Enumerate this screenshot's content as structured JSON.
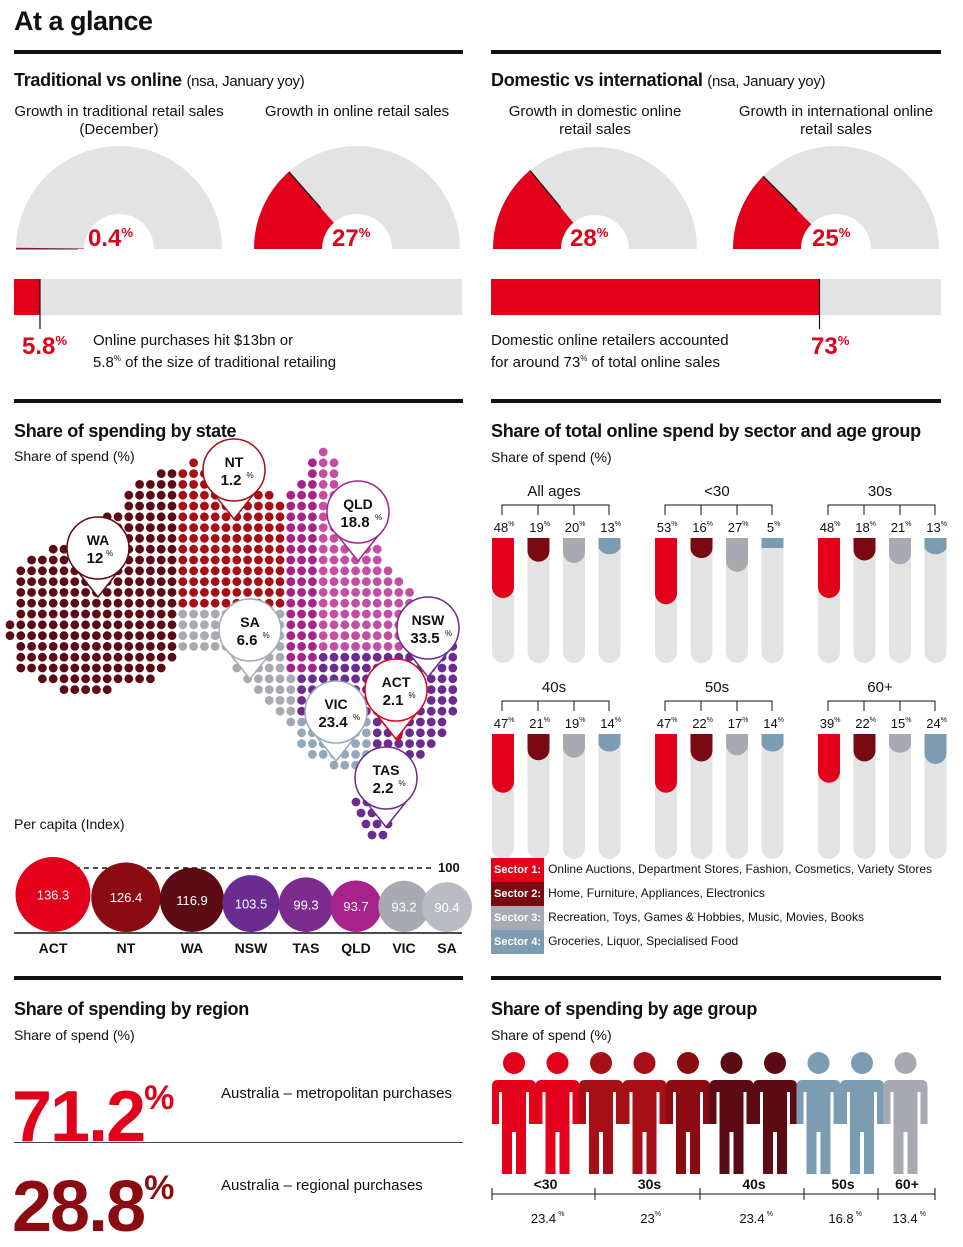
{
  "title": "At a glance",
  "colors": {
    "red": "#e3001b",
    "dark_red": "#a50f15",
    "maroon": "#5c0b14",
    "purple": "#6a2c91",
    "magenta": "#a8228b",
    "pink": "#c44fa2",
    "grey": "#a7aab0",
    "steel": "#7c9db1",
    "light": "#e3e3e3"
  },
  "trad_online": {
    "heading": "Traditional vs online",
    "note": "(nsa, January yoy)",
    "gauge1": {
      "caption": "Growth in traditional retail sales (December)",
      "value": "0.4",
      "pct": 0.4
    },
    "gauge2": {
      "caption": "Growth in online retail sales",
      "value": "27",
      "pct": 27
    },
    "bar_value": "5.8",
    "bar_pct": 5.8,
    "bar_text_1": "Online purchases hit $13bn or",
    "bar_text_2a": "5.8",
    "bar_text_2b": " of the size of traditional retailing"
  },
  "dom_intl": {
    "heading": "Domestic vs international",
    "note": "(nsa, January yoy)",
    "gauge1": {
      "caption": "Growth in domestic online retail sales",
      "value": "28",
      "pct": 28
    },
    "gauge2": {
      "caption": "Growth in international online retail sales",
      "value": "25",
      "pct": 25
    },
    "bar_value": "73",
    "bar_pct": 73,
    "bar_text_1": "Domestic online retailers accounted",
    "bar_text_2a": "for around 73",
    "bar_text_2b": " of total online sales"
  },
  "state": {
    "heading": "Share of spending by state",
    "sub": "Share of spend (%)",
    "pins": [
      {
        "state": "NT",
        "value": "1.2"
      },
      {
        "state": "QLD",
        "value": "18.8"
      },
      {
        "state": "WA",
        "value": "12"
      },
      {
        "state": "SA",
        "value": "6.6"
      },
      {
        "state": "NSW",
        "value": "33.5"
      },
      {
        "state": "ACT",
        "value": "2.1"
      },
      {
        "state": "VIC",
        "value": "23.4"
      },
      {
        "state": "TAS",
        "value": "2.2"
      }
    ],
    "per_capita_label": "Per capita (Index)",
    "index_line_label": "100"
  },
  "chart_data": [
    {
      "type": "bar",
      "title": "Per capita (Index)",
      "categories": [
        "ACT",
        "NT",
        "WA",
        "NSW",
        "TAS",
        "QLD",
        "VIC",
        "SA"
      ],
      "values": [
        136.3,
        126.4,
        116.9,
        103.5,
        99.3,
        93.7,
        93.2,
        90.4
      ],
      "labels": [
        "136.3",
        "126.4",
        "116.9",
        "103.5",
        "99.3",
        "93.7",
        "93.2",
        "90.4"
      ],
      "reference_line": 100
    },
    {
      "type": "bar",
      "title": "Share of total online spend by sector and age group",
      "groups": [
        {
          "name": "All ages",
          "values": [
            48,
            19,
            20,
            13
          ]
        },
        {
          "name": "<30",
          "values": [
            53,
            16,
            27,
            5
          ]
        },
        {
          "name": "30s",
          "values": [
            48,
            18,
            21,
            13
          ]
        },
        {
          "name": "40s",
          "values": [
            47,
            21,
            19,
            14
          ]
        },
        {
          "name": "50s",
          "values": [
            47,
            22,
            17,
            14
          ]
        },
        {
          "name": "60+",
          "values": [
            39,
            22,
            15,
            24
          ]
        }
      ],
      "series": [
        "Sector 1",
        "Sector 2",
        "Sector 3",
        "Sector 4"
      ],
      "ylim": [
        0,
        100
      ]
    },
    {
      "type": "bar",
      "title": "Share of spending by age group",
      "categories": [
        "<30",
        "30s",
        "40s",
        "50s",
        "60+"
      ],
      "values": [
        23.4,
        23,
        23.4,
        16.8,
        13.4
      ]
    }
  ],
  "sector": {
    "heading": "Share of total online spend by sector and age group",
    "sub": "Share of spend (%)",
    "legend": [
      {
        "chip": "Sector 1:",
        "text": "Online Auctions, Department Stores, Fashion, Cosmetics, Variety Stores"
      },
      {
        "chip": "Sector 2:",
        "text": "Home, Furniture, Appliances, Electronics"
      },
      {
        "chip": "Sector 3:",
        "text": "Recreation, Toys, Games & Hobbies, Music, Movies, Books"
      },
      {
        "chip": "Sector 4:",
        "text": "Groceries, Liquor, Specialised Food"
      }
    ]
  },
  "region": {
    "heading": "Share of spending by region",
    "sub": "Share of spend (%)",
    "metro_value": "71.2",
    "metro_label": "Australia – metropolitan purchases",
    "regional_value": "28.8",
    "regional_label": "Australia – regional purchases"
  },
  "age": {
    "heading": "Share of spending by age group",
    "sub": "Share of spend (%)",
    "groups": [
      {
        "label": "<30",
        "value": "23.4"
      },
      {
        "label": "30s",
        "value": "23"
      },
      {
        "label": "40s",
        "value": "23.4"
      },
      {
        "label": "50s",
        "value": "16.8"
      },
      {
        "label": "60+",
        "value": "13.4"
      }
    ]
  }
}
